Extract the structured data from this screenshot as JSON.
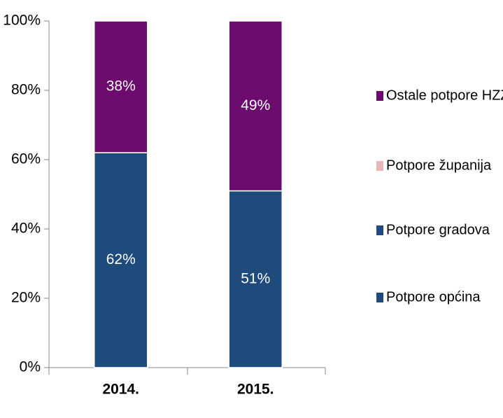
{
  "chart_data": {
    "type": "stacked_bar",
    "categories": [
      "2014.",
      "2015."
    ],
    "series": [
      {
        "name": "Potpore općina",
        "color": "#1f4a7c",
        "values": [
          62,
          51
        ],
        "value_labels": [
          "62%",
          "51%"
        ]
      },
      {
        "name": "Potpore gradova",
        "color": "#24497e",
        "values": [
          0,
          0
        ],
        "value_labels": [
          null,
          null
        ]
      },
      {
        "name": "Potpore županija",
        "color": "#e6b9b8",
        "values": [
          0,
          0
        ],
        "value_labels": [
          null,
          null
        ]
      },
      {
        "name": "Ostale potpore HZZ",
        "color": "#6b0b6e",
        "values": [
          38,
          49
        ],
        "value_labels": [
          "38%",
          "49%"
        ]
      }
    ],
    "ylim": [
      0,
      100
    ],
    "yticks": [
      {
        "value": 0,
        "label": "0%"
      },
      {
        "value": 20,
        "label": "20%"
      },
      {
        "value": 40,
        "label": "40%"
      },
      {
        "value": 60,
        "label": "60%"
      },
      {
        "value": 80,
        "label": "80%"
      },
      {
        "value": 100,
        "label": "100%"
      }
    ],
    "legend": "right"
  }
}
